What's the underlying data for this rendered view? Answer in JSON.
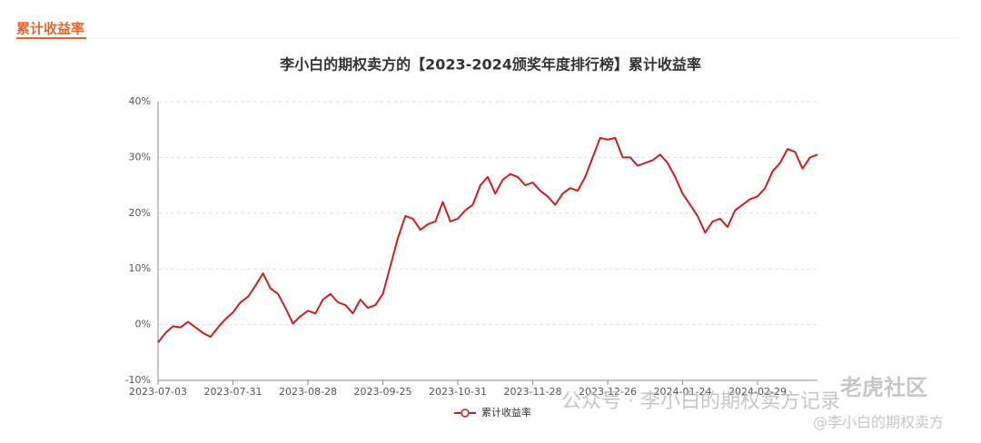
{
  "header": {
    "title": "累计收益率"
  },
  "chart_data": {
    "type": "line",
    "title": "李小白的期权卖方的【2023-2024颁奖年度排行榜】累计收益率",
    "categories": [
      "2023-07-03",
      null,
      null,
      null,
      null,
      null,
      null,
      null,
      null,
      null,
      "2023-07-31",
      null,
      null,
      null,
      null,
      null,
      null,
      null,
      null,
      null,
      "2023-08-28",
      null,
      null,
      null,
      null,
      null,
      null,
      null,
      null,
      null,
      "2023-09-25",
      null,
      null,
      null,
      null,
      null,
      null,
      null,
      null,
      null,
      "2023-10-31",
      null,
      null,
      null,
      null,
      null,
      null,
      null,
      null,
      null,
      "2023-11-28",
      null,
      null,
      null,
      null,
      null,
      null,
      null,
      null,
      null,
      "2023-12-26",
      null,
      null,
      null,
      null,
      null,
      null,
      null,
      null,
      null,
      "2024-01-24",
      null,
      null,
      null,
      null,
      null,
      null,
      null,
      null,
      null,
      "2024-02-29",
      null,
      null,
      null,
      null,
      null,
      null,
      null,
      null
    ],
    "series": [
      {
        "name": "累计收益率",
        "color": "#c9201c",
        "values": [
          -3.2,
          -1.5,
          -0.3,
          -0.5,
          0.5,
          -0.5,
          -1.5,
          -2.2,
          -0.5,
          1.0,
          2.2,
          4.0,
          5.0,
          7.0,
          9.2,
          6.5,
          5.5,
          3.0,
          0.2,
          1.5,
          2.5,
          2.0,
          4.5,
          5.5,
          4.0,
          3.5,
          2.0,
          4.5,
          3.0,
          3.5,
          5.5,
          10.5,
          15.5,
          19.5,
          19.0,
          17.0,
          18.0,
          18.5,
          22.0,
          18.5,
          19.0,
          20.5,
          21.5,
          25.0,
          26.5,
          23.5,
          26.0,
          27.0,
          26.5,
          25.0,
          25.5,
          24.0,
          23.0,
          21.5,
          23.5,
          24.5,
          24.0,
          26.5,
          30.0,
          33.5,
          33.2,
          33.5,
          30.0,
          30.0,
          28.5,
          29.0,
          29.5,
          30.5,
          29.0,
          26.5,
          23.5,
          21.5,
          19.5,
          16.5,
          18.5,
          19.0,
          17.5,
          20.5,
          21.5,
          22.5,
          23.0,
          24.5,
          27.5,
          29.0,
          31.5,
          31.0,
          28.0,
          30.0,
          30.5
        ]
      }
    ],
    "ylim": [
      -10,
      40
    ],
    "yticks": [
      {
        "value": -10,
        "label": "-10%"
      },
      {
        "value": 0,
        "label": "0%"
      },
      {
        "value": 10,
        "label": "10%"
      },
      {
        "value": 20,
        "label": "20%"
      },
      {
        "value": 30,
        "label": "30%"
      },
      {
        "value": 40,
        "label": "40%"
      }
    ],
    "grid": true
  },
  "watermarks": [
    "公众号 · 李小白的期权卖方记录",
    "老虎社区",
    "@李小白的期权卖方"
  ]
}
